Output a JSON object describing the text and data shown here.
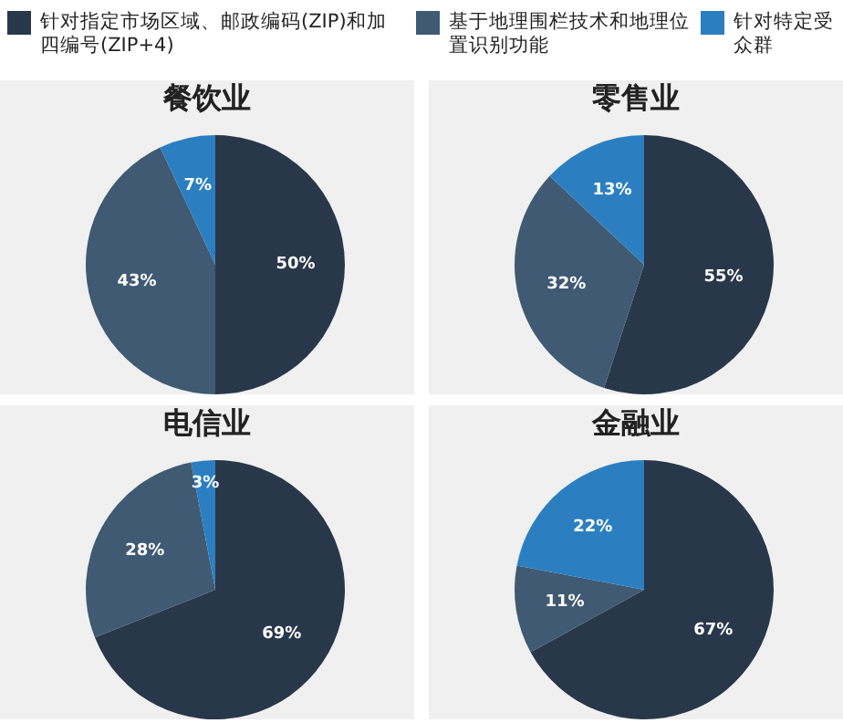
{
  "chart_data": [
    {
      "type": "pie",
      "title": "餐饮业",
      "categories": [
        "针对指定市场区域、邮政编码(ZIP)和加四编号(ZIP+4)",
        "基于地理围栏技术和地理位置识别功能",
        "针对特定受众群"
      ],
      "values": [
        50,
        43,
        7
      ],
      "colors": [
        "#29374a",
        "#3f5a72",
        "#2b7fc0"
      ],
      "value_labels": [
        "50%",
        "43%",
        "7%"
      ],
      "legend": "top"
    },
    {
      "type": "pie",
      "title": "零售业",
      "categories": [
        null,
        null,
        null
      ],
      "values": [
        55,
        32,
        13
      ],
      "colors": [
        "#29374a",
        "#3f5a72",
        "#2b7fc0"
      ],
      "value_labels": [
        "55%",
        "32%",
        "13%"
      ]
    },
    {
      "type": "pie",
      "title": "电信业",
      "categories": [
        null,
        null,
        null
      ],
      "values": [
        69,
        28,
        3
      ],
      "colors": [
        "#29374a",
        "#3f5a72",
        "#2b7fc0"
      ],
      "value_labels": [
        "69%",
        "28%",
        "3%"
      ]
    },
    {
      "type": "pie",
      "title": "金融业",
      "categories": [
        null,
        null,
        null
      ],
      "values": [
        67,
        11,
        22
      ],
      "colors": [
        "#29374a",
        "#3f5a72",
        "#2b7fc0"
      ],
      "value_labels": [
        "67%",
        "11%",
        "22%"
      ]
    }
  ]
}
